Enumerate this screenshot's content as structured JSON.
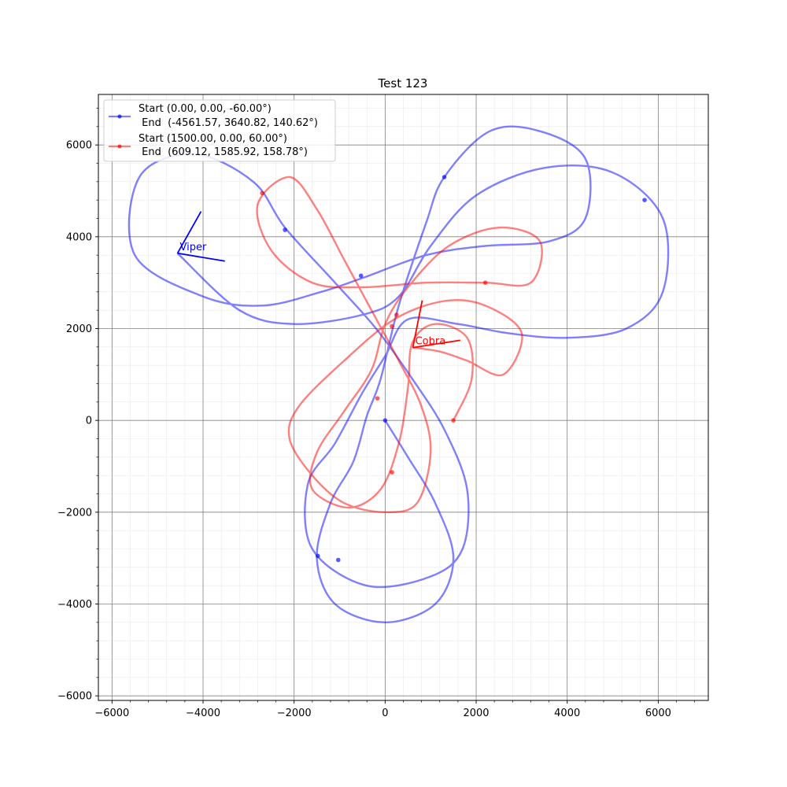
{
  "chart_data": {
    "type": "line",
    "title": "Test 123",
    "xlabel": "",
    "ylabel": "",
    "xlim": [
      -6300,
      7100
    ],
    "ylim": [
      -6100,
      7100
    ],
    "xticks": [
      -6000,
      -4000,
      -2000,
      0,
      2000,
      4000,
      6000
    ],
    "yticks": [
      -6000,
      -4000,
      -2000,
      0,
      2000,
      4000,
      6000
    ],
    "xtick_labels": [
      "−6000",
      "−4000",
      "−2000",
      "0",
      "2000",
      "4000",
      "6000"
    ],
    "ytick_labels": [
      "−6000",
      "−4000",
      "−2000",
      "0",
      "2000",
      "4000",
      "6000"
    ],
    "grid": true,
    "minor_grid": true,
    "legend_position": "top-left",
    "series": [
      {
        "legend_line1": "Start (0.00, 0.00, -60.00°)",
        "legend_line2": " End  (-4561.57, 3640.82, 140.62°)",
        "color": "#0000ff",
        "points": [
          [
            0,
            0
          ],
          [
            500,
            -800
          ],
          [
            1100,
            -1800
          ],
          [
            1500,
            -3000
          ],
          [
            1100,
            -4000
          ],
          [
            0,
            -4400
          ],
          [
            -1100,
            -4000
          ],
          [
            -1500,
            -3000
          ],
          [
            -1200,
            -1800
          ],
          [
            -700,
            -900
          ],
          [
            -400,
            100
          ],
          [
            -100,
            900
          ],
          [
            300,
            2500
          ],
          [
            900,
            4300
          ],
          [
            1300,
            5300
          ],
          [
            2300,
            6300
          ],
          [
            3400,
            6300
          ],
          [
            4400,
            5700
          ],
          [
            4400,
            4400
          ],
          [
            3600,
            3900
          ],
          [
            2200,
            3800
          ],
          [
            900,
            3600
          ],
          [
            -500,
            3100
          ],
          [
            -1400,
            2800
          ],
          [
            -2700,
            2500
          ],
          [
            -4000,
            2700
          ],
          [
            -5500,
            3600
          ],
          [
            -5400,
            5300
          ],
          [
            -4200,
            5800
          ],
          [
            -2900,
            5200
          ],
          [
            -2200,
            4200
          ],
          [
            -1100,
            3000
          ],
          [
            -200,
            2000
          ],
          [
            600,
            900
          ],
          [
            1300,
            -200
          ],
          [
            1800,
            -1500
          ],
          [
            1700,
            -2800
          ],
          [
            1000,
            -3400
          ],
          [
            -400,
            -3600
          ],
          [
            -1600,
            -2800
          ],
          [
            -1700,
            -1400
          ],
          [
            -1100,
            -500
          ],
          [
            -500,
            600
          ],
          [
            0,
            1400
          ],
          [
            500,
            2200
          ],
          [
            1600,
            2100
          ],
          [
            2700,
            1900
          ],
          [
            4000,
            1800
          ],
          [
            5300,
            2000
          ],
          [
            6100,
            2800
          ],
          [
            6100,
            4400
          ],
          [
            5000,
            5400
          ],
          [
            3500,
            5500
          ],
          [
            2000,
            4900
          ],
          [
            1000,
            3800
          ],
          [
            300,
            2700
          ],
          [
            -500,
            2300
          ],
          [
            -2000,
            2100
          ],
          [
            -3200,
            2400
          ],
          [
            -4561.57,
            3640.82
          ]
        ],
        "dots": [
          [
            0,
            0
          ],
          [
            1300,
            5300
          ],
          [
            5700,
            4800
          ],
          [
            -2200,
            4150
          ],
          [
            -530,
            3150
          ],
          [
            -1480,
            -2950
          ],
          [
            -1030,
            -3040
          ]
        ],
        "marker": {
          "label": "Viper",
          "x": -4561.57,
          "y": 3640.82,
          "heading": 140.62
        }
      },
      {
        "legend_line1": "Start (1500.00, 0.00, 60.00°)",
        "legend_line2": " End  (609.12, 1585.92, 158.78°)",
        "color": "#ff0000",
        "points": [
          [
            1500,
            0
          ],
          [
            1900,
            900
          ],
          [
            1800,
            1800
          ],
          [
            1100,
            2100
          ],
          [
            600,
            1700
          ],
          [
            500,
            700
          ],
          [
            300,
            -500
          ],
          [
            -100,
            -1500
          ],
          [
            -800,
            -1900
          ],
          [
            -1600,
            -1500
          ],
          [
            -1500,
            -700
          ],
          [
            -900,
            200
          ],
          [
            -300,
            1100
          ],
          [
            0,
            2100
          ],
          [
            500,
            2900
          ],
          [
            1400,
            3800
          ],
          [
            2500,
            4200
          ],
          [
            3400,
            3900
          ],
          [
            3200,
            3000
          ],
          [
            2200,
            3000
          ],
          [
            900,
            3000
          ],
          [
            -500,
            2900
          ],
          [
            -1600,
            3000
          ],
          [
            -2500,
            3700
          ],
          [
            -2800,
            4700
          ],
          [
            -2100,
            5300
          ],
          [
            -1500,
            4600
          ],
          [
            -900,
            3500
          ],
          [
            -300,
            2400
          ],
          [
            300,
            1300
          ],
          [
            800,
            300
          ],
          [
            1000,
            -700
          ],
          [
            700,
            -1800
          ],
          [
            0,
            -2000
          ],
          [
            -900,
            -1800
          ],
          [
            -1600,
            -1200
          ],
          [
            -2100,
            -400
          ],
          [
            -1900,
            300
          ],
          [
            -900,
            1300
          ],
          [
            200,
            2200
          ],
          [
            1300,
            2600
          ],
          [
            2200,
            2500
          ],
          [
            3000,
            1900
          ],
          [
            2600,
            1000
          ],
          [
            1800,
            1300
          ],
          [
            1200,
            1500
          ],
          [
            609.12,
            1585.92
          ]
        ],
        "dots": [
          [
            1500,
            0
          ],
          [
            2200,
            3000
          ],
          [
            -2700,
            4950
          ],
          [
            250,
            2300
          ],
          [
            150,
            2050
          ],
          [
            -170,
            480
          ],
          [
            150,
            -1130
          ]
        ],
        "marker": {
          "label": "Cobra",
          "x": 609.12,
          "y": 1585.92,
          "heading": 158.78
        }
      }
    ]
  }
}
